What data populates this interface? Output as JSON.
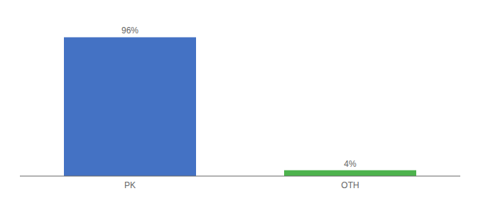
{
  "chart_data": {
    "type": "bar",
    "categories": [
      "PK",
      "OTH"
    ],
    "values": [
      96,
      4
    ],
    "value_labels": [
      "96%",
      "4%"
    ],
    "colors": [
      "#4472c4",
      "#4db34d"
    ],
    "ylim": [
      0,
      108
    ],
    "data_labels": true,
    "tick_labels": "x",
    "grid": false
  }
}
